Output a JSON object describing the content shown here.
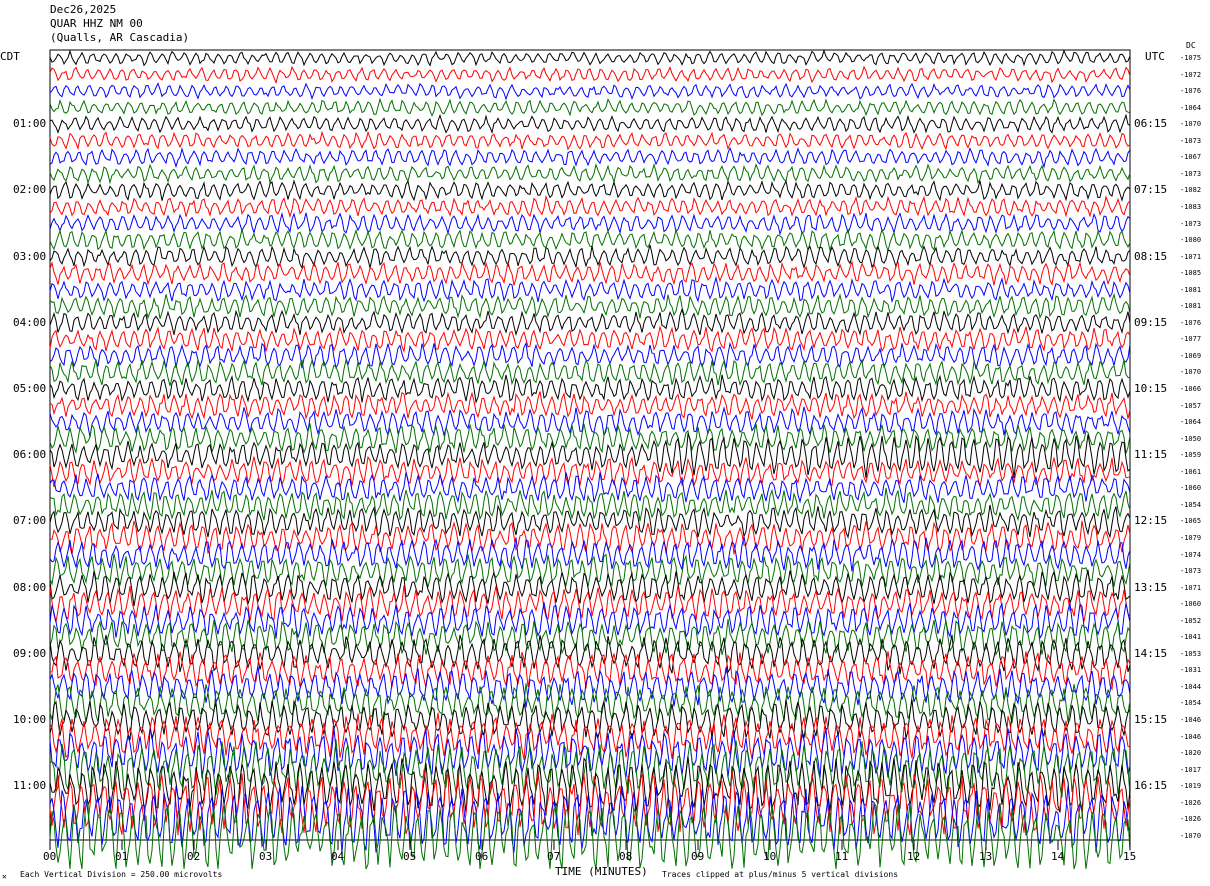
{
  "header": {
    "date": "Dec26,2025",
    "station": "QUAR HHZ NM 00",
    "location": "(Qualls, AR Cascadia)"
  },
  "left_tz": "CDT",
  "right_tz": "UTC",
  "dc_label": "DC",
  "footer": {
    "scale_note": "Each Vertical Division =  250.00 microvolts",
    "xlabel": "TIME (MINUTES)",
    "clip_note": "Traces clipped at plus/minus 5 vertical divisions",
    "corner_mark": "✕"
  },
  "chart_data": {
    "type": "line",
    "subtype": "helicorder",
    "xlabel": "TIME (MINUTES)",
    "xlim": [
      0,
      15
    ],
    "xticks": [
      "00",
      "01",
      "02",
      "03",
      "04",
      "05",
      "06",
      "07",
      "08",
      "09",
      "10",
      "11",
      "12",
      "13",
      "14",
      "15"
    ],
    "left_time_labels": [
      "01:00",
      "02:00",
      "03:00",
      "04:00",
      "05:00",
      "06:00",
      "07:00",
      "08:00",
      "09:00",
      "10:00",
      "11:00"
    ],
    "right_time_labels": [
      "06:15",
      "07:15",
      "08:15",
      "09:15",
      "10:15",
      "11:15",
      "12:15",
      "13:15",
      "14:15",
      "15:15",
      "16:15"
    ],
    "trace_colors": [
      "#000000",
      "#ff0000",
      "#0000ff",
      "#007000"
    ],
    "dc_offsets": [
      "-1075",
      "-1072",
      "-1076",
      "-1064",
      "-1070",
      "-1073",
      "-1067",
      "-1073",
      "-1082",
      "-1083",
      "-1073",
      "-1080",
      "-1071",
      "-1085",
      "-1081",
      "-1081",
      "-1076",
      "-1077",
      "-1069",
      "-1070",
      "-1066",
      "-1057",
      "-1064",
      "-1050",
      "-1059",
      "-1061",
      "-1060",
      "-1054",
      "-1065",
      "-1079",
      "-1074",
      "-1073",
      "-1071",
      "-1060",
      "-1052",
      "-1041",
      "-1053",
      "-1031",
      "-1044",
      "-1054",
      "-1046",
      "-1046",
      "-1020",
      "-1017",
      "-1019",
      "-1026",
      "-1026",
      "-1070"
    ],
    "scale_microvolts_per_division": 250.0,
    "clip_divisions": 5
  }
}
